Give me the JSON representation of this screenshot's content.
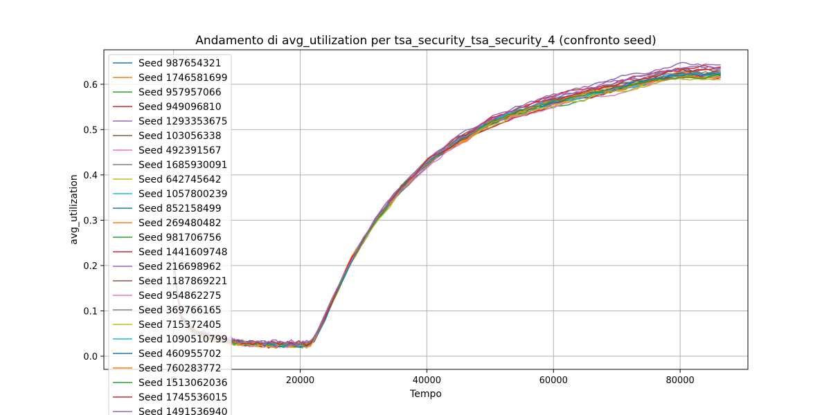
{
  "chart_data": {
    "type": "line",
    "title": "Andamento di avg_utilization per tsa_security_tsa_security_4 (confronto seed)",
    "xlabel": "Tempo",
    "ylabel": "avg_utilization",
    "xlim": [
      -11000,
      90700
    ],
    "ylim": [
      -0.029,
      0.676
    ],
    "xticks": [
      0,
      20000,
      40000,
      60000,
      80000
    ],
    "xtick_labels": [
      "0",
      "20000",
      "40000",
      "60000",
      "80000"
    ],
    "yticks": [
      0.0,
      0.1,
      0.2,
      0.3,
      0.4,
      0.5,
      0.6
    ],
    "ytick_labels": [
      "0.0",
      "0.1",
      "0.2",
      "0.3",
      "0.4",
      "0.5",
      "0.6"
    ],
    "grid": true,
    "legend_position": "upper-left",
    "curve_shape": {
      "x": [
        0,
        1000,
        3000,
        6000,
        10000,
        15000,
        21500,
        22500,
        25000,
        28000,
        32000,
        36000,
        40000,
        45000,
        50000,
        55000,
        60000,
        65000,
        70000,
        75000,
        80000,
        86400
      ],
      "y": [
        0.21,
        0.09,
        0.055,
        0.04,
        0.03,
        0.025,
        0.025,
        0.045,
        0.12,
        0.21,
        0.3,
        0.37,
        0.425,
        0.475,
        0.515,
        0.543,
        0.562,
        0.578,
        0.593,
        0.608,
        0.622,
        0.623
      ]
    },
    "series": [
      {
        "name": "Seed 987654321",
        "color": "#1f77b4",
        "offset": -0.003
      },
      {
        "name": "Seed 1746581699",
        "color": "#ff7f0e",
        "offset": -0.004
      },
      {
        "name": "Seed 957957066",
        "color": "#2ca02c",
        "offset": -0.006
      },
      {
        "name": "Seed 949096810",
        "color": "#d62728",
        "offset": 0.015
      },
      {
        "name": "Seed 1293353675",
        "color": "#9467bd",
        "offset": 0.008
      },
      {
        "name": "Seed 103056338",
        "color": "#8c564b",
        "offset": 0.006
      },
      {
        "name": "Seed 492391567",
        "color": "#e377c2",
        "offset": -0.01
      },
      {
        "name": "Seed 1685930091",
        "color": "#7f7f7f",
        "offset": 0.003
      },
      {
        "name": "Seed 642745642",
        "color": "#bcbd22",
        "offset": -0.005
      },
      {
        "name": "Seed 1057800239",
        "color": "#17becf",
        "offset": 0.0
      },
      {
        "name": "Seed 852158499",
        "color": "#1f77b4",
        "offset": 0.004
      },
      {
        "name": "Seed 269480482",
        "color": "#ff7f0e",
        "offset": 0.002
      },
      {
        "name": "Seed 981706756",
        "color": "#2ca02c",
        "offset": -0.002
      },
      {
        "name": "Seed 1441609748",
        "color": "#d62728",
        "offset": -0.007
      },
      {
        "name": "Seed 216698962",
        "color": "#9467bd",
        "offset": 0.02
      },
      {
        "name": "Seed 1187869221",
        "color": "#8c564b",
        "offset": 0.001
      },
      {
        "name": "Seed 954862275",
        "color": "#e377c2",
        "offset": -0.008
      },
      {
        "name": "Seed 369766165",
        "color": "#7f7f7f",
        "offset": 0.005
      },
      {
        "name": "Seed 715372405",
        "color": "#bcbd22",
        "offset": -0.009
      },
      {
        "name": "Seed 1090510799",
        "color": "#17becf",
        "offset": 0.001
      },
      {
        "name": "Seed 460955702",
        "color": "#1f77b4",
        "offset": -0.001
      },
      {
        "name": "Seed 760283772",
        "color": "#ff7f0e",
        "offset": -0.003
      },
      {
        "name": "Seed 1513062036",
        "color": "#2ca02c",
        "offset": 0.0
      },
      {
        "name": "Seed 1745536015",
        "color": "#d62728",
        "offset": 0.009
      },
      {
        "name": "Seed 1491536940",
        "color": "#9467bd",
        "offset": 0.012
      }
    ]
  }
}
